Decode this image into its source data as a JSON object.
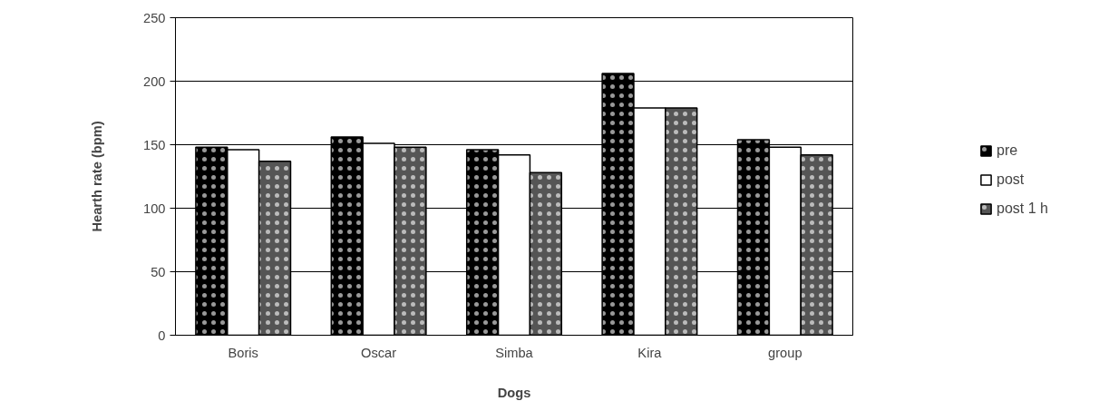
{
  "chart_data": {
    "type": "bar",
    "xlabel": "Dogs",
    "ylabel": "Hearth rate (bpm)",
    "categories": [
      "Boris",
      "Oscar",
      "Simba",
      "Kira",
      "group"
    ],
    "series": [
      {
        "name": "pre",
        "color": "#000000",
        "values": [
          148,
          156,
          146,
          206,
          154
        ]
      },
      {
        "name": "post",
        "color": "#ffffff",
        "values": [
          146,
          151,
          142,
          179,
          148
        ]
      },
      {
        "name": "post 1 h",
        "color": "#555555",
        "values": [
          137,
          148,
          128,
          179,
          142
        ]
      }
    ],
    "ylim": [
      0,
      250
    ],
    "yticks": [
      0,
      50,
      100,
      150,
      200,
      250
    ],
    "grid": "y",
    "legend": "right"
  }
}
